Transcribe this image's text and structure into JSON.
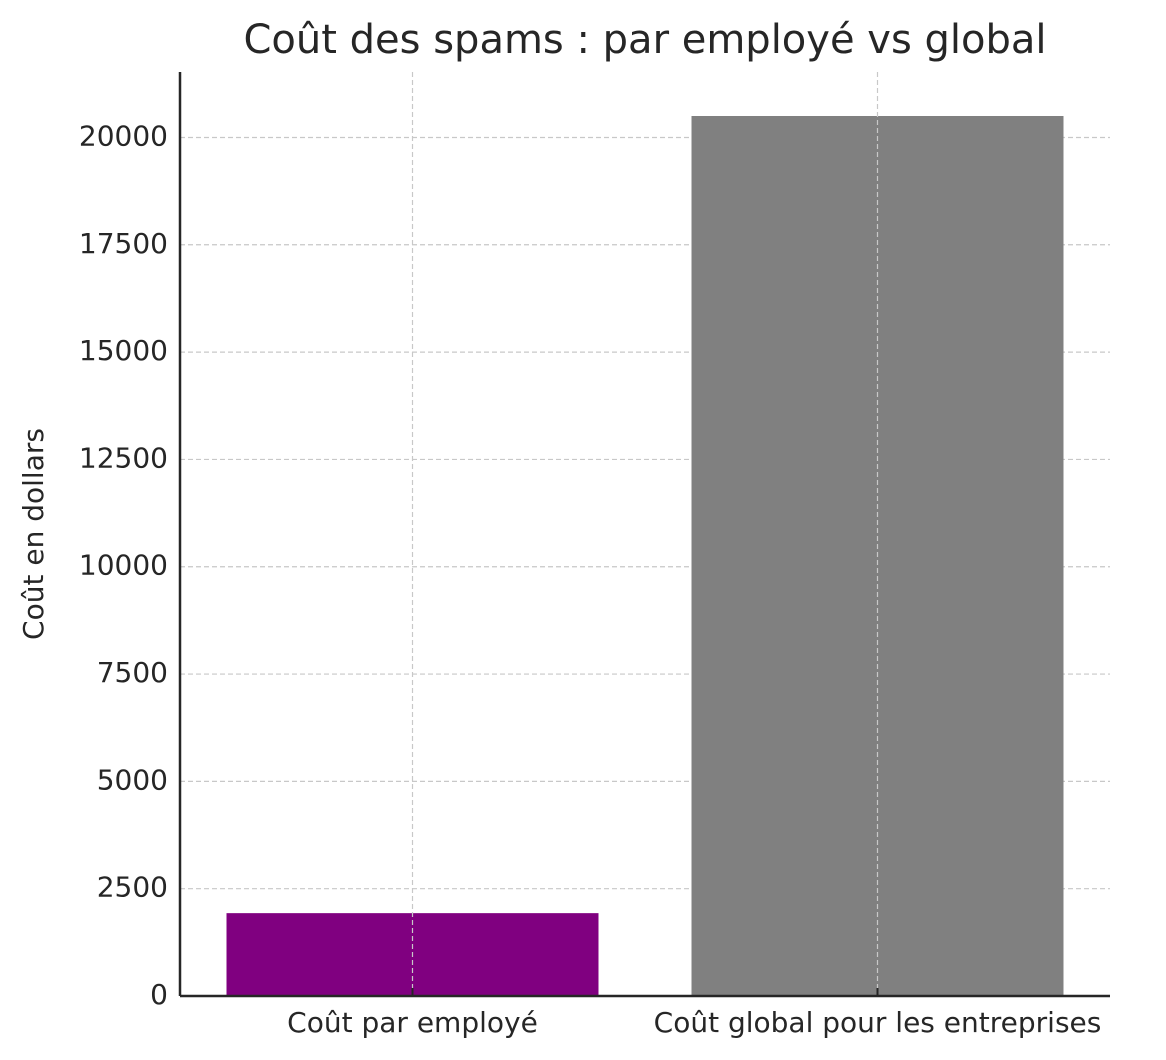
{
  "chart_data": {
    "type": "bar",
    "title": "Coût des spams : par employé vs global",
    "y_label": "Coût en dollars",
    "categories": [
      "Coût par employé",
      "Coût global pour les entreprises"
    ],
    "values": [
      1930,
      20500
    ],
    "colors": [
      "#800080",
      "#808080"
    ],
    "ylim": [
      0,
      21525
    ],
    "yticks": [
      0,
      2500,
      5000,
      7500,
      10000,
      12500,
      15000,
      17500,
      20000
    ],
    "grid": true
  }
}
